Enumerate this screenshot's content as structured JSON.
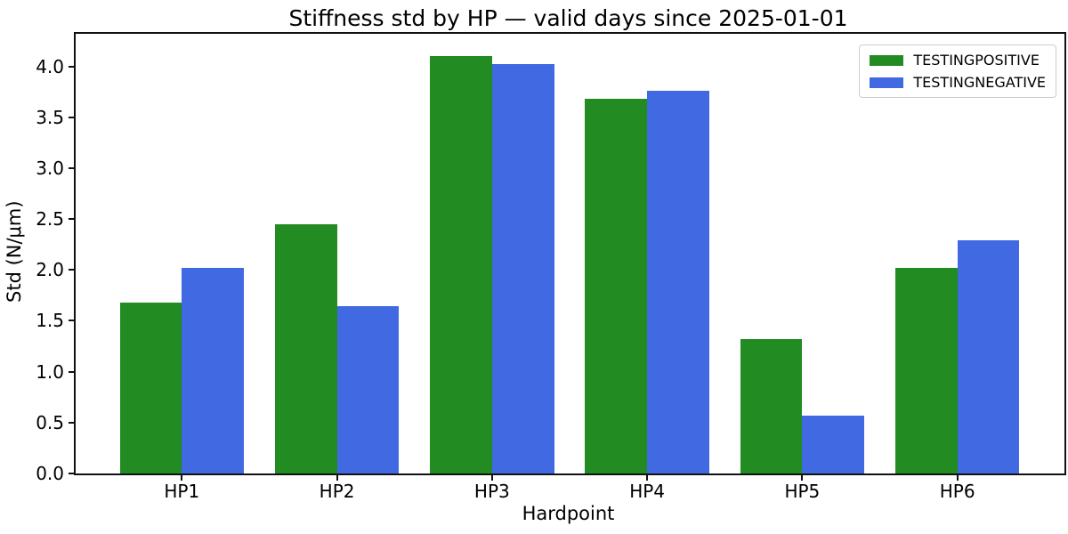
{
  "chart_data": {
    "type": "bar",
    "title": "Stiffness std by HP — valid days since 2025-01-01",
    "xlabel": "Hardpoint",
    "ylabel": "Std (N/μm)",
    "categories": [
      "HP1",
      "HP2",
      "HP3",
      "HP4",
      "HP5",
      "HP6"
    ],
    "series": [
      {
        "name": "TESTINGPOSITIVE",
        "color": "#228B22",
        "values": [
          1.68,
          2.45,
          4.1,
          3.68,
          1.32,
          2.02
        ]
      },
      {
        "name": "TESTINGNEGATIVE",
        "color": "#4169E1",
        "values": [
          2.02,
          1.64,
          4.02,
          3.76,
          0.57,
          2.29
        ]
      }
    ],
    "ylim": [
      0,
      4.32
    ],
    "yticks": [
      0.0,
      0.5,
      1.0,
      1.5,
      2.0,
      2.5,
      3.0,
      3.5,
      4.0
    ],
    "ytick_label_format": "one-decimal",
    "legend_position": "upper right",
    "grid": false,
    "background_color": "#ffffff",
    "spine_color": "#111111"
  }
}
